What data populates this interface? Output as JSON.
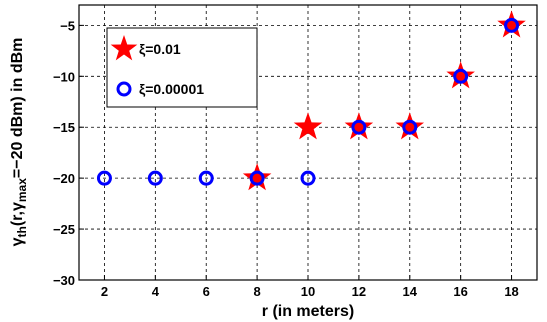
{
  "chart_data": {
    "type": "scatter",
    "title": "",
    "xlabel": "r (in meters)",
    "ylabel": {
      "base": "γ",
      "base_sub": "th",
      "mid": "(r,γ",
      "mid_sub": "max",
      "tail": "=−20 dBm) in dBm"
    },
    "xlim": [
      1,
      19
    ],
    "ylim": [
      -30,
      -3
    ],
    "xticks": [
      2,
      4,
      6,
      8,
      10,
      12,
      14,
      16,
      18
    ],
    "yticks": [
      -30,
      -25,
      -20,
      -15,
      -10,
      -5
    ],
    "ytick_labels": [
      "−30",
      "−25",
      "−20",
      "−15",
      "−10",
      "−5"
    ],
    "grid": true,
    "legend_position": "top-left",
    "series": [
      {
        "name": "ξ=0.01",
        "marker": "star",
        "color": "#ff0000",
        "x": [
          8,
          10,
          12,
          14,
          16,
          18
        ],
        "y": [
          -20,
          -15,
          -15,
          -15,
          -10,
          -5
        ]
      },
      {
        "name": "ξ=0.00001",
        "marker": "circle",
        "color": "#0000ff",
        "x": [
          2,
          4,
          6,
          8,
          10,
          12,
          14,
          16,
          18
        ],
        "y": [
          -20,
          -20,
          -20,
          -20,
          -20,
          -15,
          -15,
          -10,
          -5
        ]
      }
    ]
  }
}
